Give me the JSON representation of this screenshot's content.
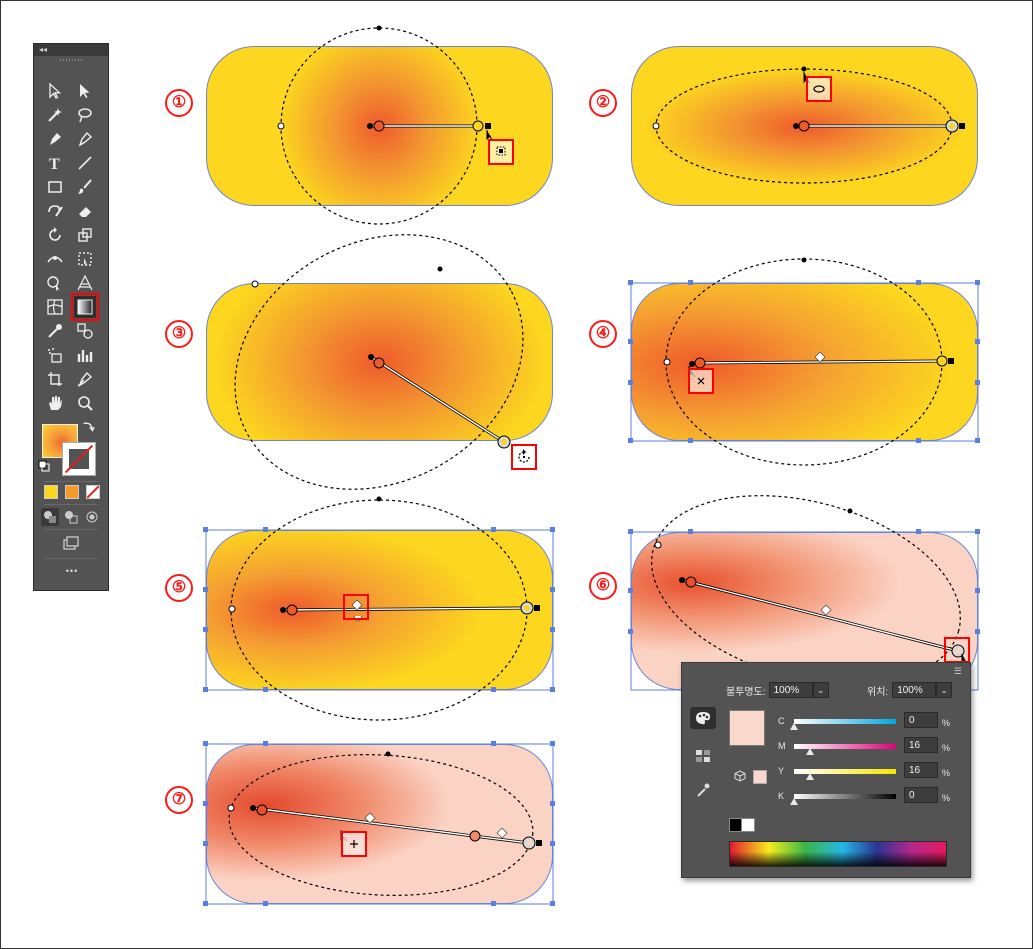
{
  "toolbar": {
    "collapse_label": "◂◂",
    "more_label": "•••"
  },
  "steps": [
    "①",
    "②",
    "③",
    "④",
    "⑤",
    "⑥",
    "⑦"
  ],
  "colors": {
    "gradient_center": "#ef5a2b",
    "gradient_mid": "#f7a53a",
    "gradient_edge": "#fcd61f",
    "step6_light": "#fbd3c5",
    "bounding_box": "#5b7fe0",
    "highlight": "#ff0000"
  },
  "panel": {
    "opacity_label": "불투명도:",
    "opacity_value": "100%",
    "location_label": "위치:",
    "location_value": "100%",
    "swatch_color": "#fbd8cc",
    "channels": [
      {
        "label": "C",
        "value": "0",
        "unit": "%",
        "level": 0.0
      },
      {
        "label": "M",
        "value": "16",
        "unit": "%",
        "level": 0.16
      },
      {
        "label": "Y",
        "value": "16",
        "unit": "%",
        "level": 0.16
      },
      {
        "label": "K",
        "value": "0",
        "unit": "%",
        "level": 0.0
      }
    ]
  }
}
